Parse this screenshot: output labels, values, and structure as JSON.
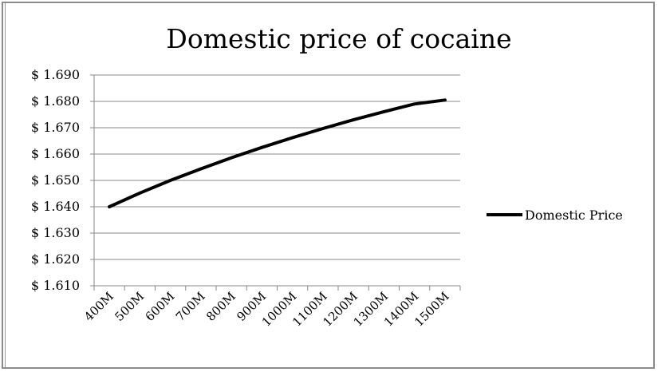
{
  "chart_data": {
    "type": "line",
    "title": "Domestic price of cocaine",
    "xlabel": "",
    "ylabel": "",
    "categories": [
      "400M",
      "500M",
      "600M",
      "700M",
      "800M",
      "900M",
      "1000M",
      "1100M",
      "1200M",
      "1300M",
      "1400M",
      "1500M"
    ],
    "y_tick_labels": [
      "$ 1.610",
      "$ 1.620",
      "$ 1.630",
      "$ 1.640",
      "$ 1.650",
      "$ 1.660",
      "$ 1.670",
      "$ 1.680",
      "$ 1.690"
    ],
    "y_ticks": [
      1.61,
      1.62,
      1.63,
      1.64,
      1.65,
      1.66,
      1.67,
      1.68,
      1.69
    ],
    "ylim": [
      1.61,
      1.69
    ],
    "grid": "horizontal",
    "legend_position": "right",
    "series": [
      {
        "name": "Domestic Price",
        "color": "#000000",
        "values": [
          1.64,
          1.6452,
          1.65,
          1.6544,
          1.6586,
          1.6625,
          1.6662,
          1.6697,
          1.673,
          1.6761,
          1.679,
          1.6805
        ]
      }
    ]
  }
}
